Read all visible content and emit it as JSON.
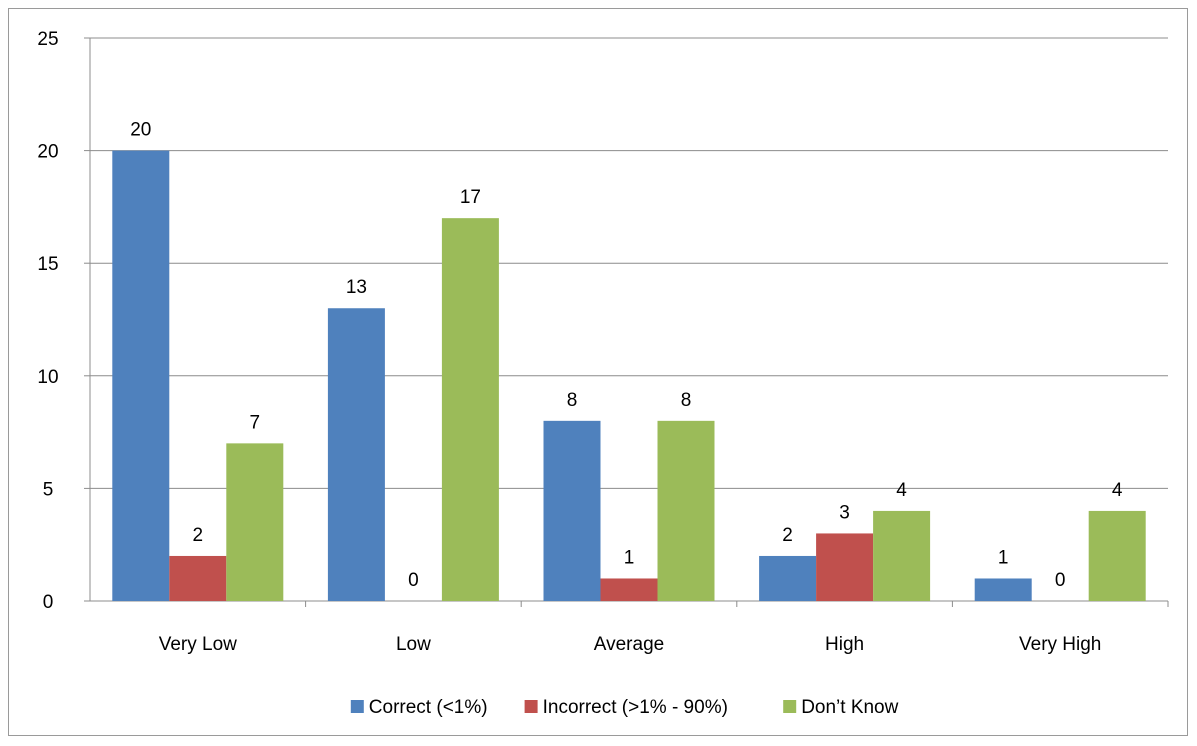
{
  "chart_data": {
    "type": "bar",
    "title": "",
    "xlabel": "",
    "ylabel": "",
    "categories": [
      "Very Low",
      "Low",
      "Average",
      "High",
      "Very High"
    ],
    "series": [
      {
        "name": "Correct (<1%)",
        "color": "#4f81bd",
        "values": [
          20,
          13,
          8,
          2,
          1
        ]
      },
      {
        "name": "Incorrect (>1% - 90%)",
        "color": "#c0504d",
        "values": [
          2,
          0,
          1,
          3,
          0
        ]
      },
      {
        "name": "Don’t Know",
        "color": "#9bbb59",
        "values": [
          7,
          17,
          8,
          4,
          4
        ]
      }
    ],
    "ylim": [
      0,
      25
    ],
    "yticks": [
      0,
      5,
      10,
      15,
      20,
      25
    ],
    "grid": true,
    "data_labels": true,
    "legend_position": "bottom"
  }
}
